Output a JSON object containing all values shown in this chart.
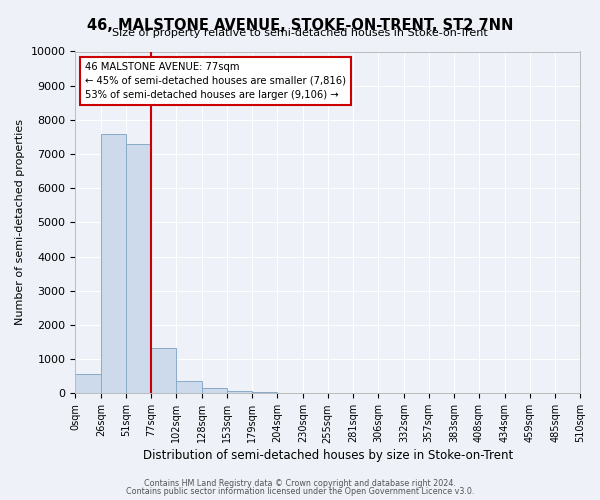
{
  "title": "46, MALSTONE AVENUE, STOKE-ON-TRENT, ST2 7NN",
  "subtitle": "Size of property relative to semi-detached houses in Stoke-on-Trent",
  "xlabel": "Distribution of semi-detached houses by size in Stoke-on-Trent",
  "ylabel": "Number of semi-detached properties",
  "footer_line1": "Contains HM Land Registry data © Crown copyright and database right 2024.",
  "footer_line2": "Contains public sector information licensed under the Open Government Licence v3.0.",
  "bin_edges": [
    0,
    26,
    51,
    77,
    102,
    128,
    153,
    179,
    204,
    230,
    255,
    281,
    306,
    332,
    357,
    383,
    408,
    434,
    459,
    485,
    510
  ],
  "bin_counts": [
    570,
    7600,
    7300,
    1320,
    360,
    155,
    80,
    50,
    0,
    0,
    0,
    0,
    0,
    0,
    0,
    0,
    0,
    0,
    0,
    0
  ],
  "property_size": 77,
  "bar_color": "#ccdaeb",
  "bar_edge_color": "#8aaac8",
  "line_color": "#cc0000",
  "annotation_box_color": "#cc0000",
  "annotation_title": "46 MALSTONE AVENUE: 77sqm",
  "annotation_line1": "← 45% of semi-detached houses are smaller (7,816)",
  "annotation_line2": "53% of semi-detached houses are larger (9,106) →",
  "ylim": [
    0,
    10000
  ],
  "yticks": [
    0,
    1000,
    2000,
    3000,
    4000,
    5000,
    6000,
    7000,
    8000,
    9000,
    10000
  ],
  "tick_labels": [
    "0sqm",
    "26sqm",
    "51sqm",
    "77sqm",
    "102sqm",
    "128sqm",
    "153sqm",
    "179sqm",
    "204sqm",
    "230sqm",
    "255sqm",
    "281sqm",
    "306sqm",
    "332sqm",
    "357sqm",
    "383sqm",
    "408sqm",
    "434sqm",
    "459sqm",
    "485sqm",
    "510sqm"
  ],
  "background_color": "#eef2f8"
}
